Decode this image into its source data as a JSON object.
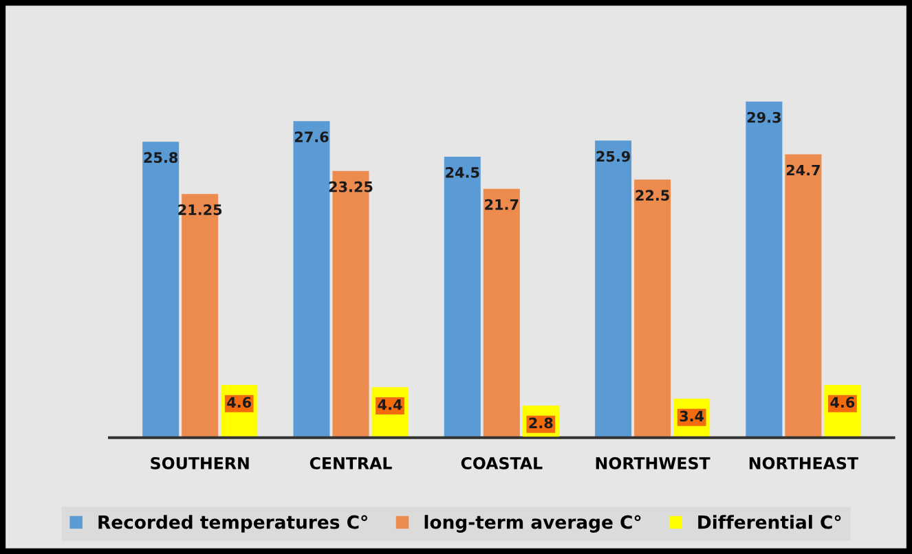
{
  "chart_data": {
    "type": "bar",
    "categories": [
      "SOUTHERN",
      "CENTRAL",
      "COASTAL",
      "NORTHWEST",
      "NORTHEAST"
    ],
    "series": [
      {
        "name": "Recorded temperatures C°",
        "color": "#5b9bd5",
        "values": [
          25.8,
          27.6,
          24.5,
          25.9,
          29.3
        ]
      },
      {
        "name": "long-term average C°",
        "color": "#ed8b4f",
        "values": [
          21.25,
          23.25,
          21.7,
          22.5,
          24.7
        ]
      },
      {
        "name": "Differential C°",
        "color": "#ffff00",
        "values": [
          4.6,
          4.4,
          2.8,
          3.4,
          4.6
        ]
      }
    ],
    "data_labels": true,
    "legend": "bottom",
    "grid": false
  }
}
